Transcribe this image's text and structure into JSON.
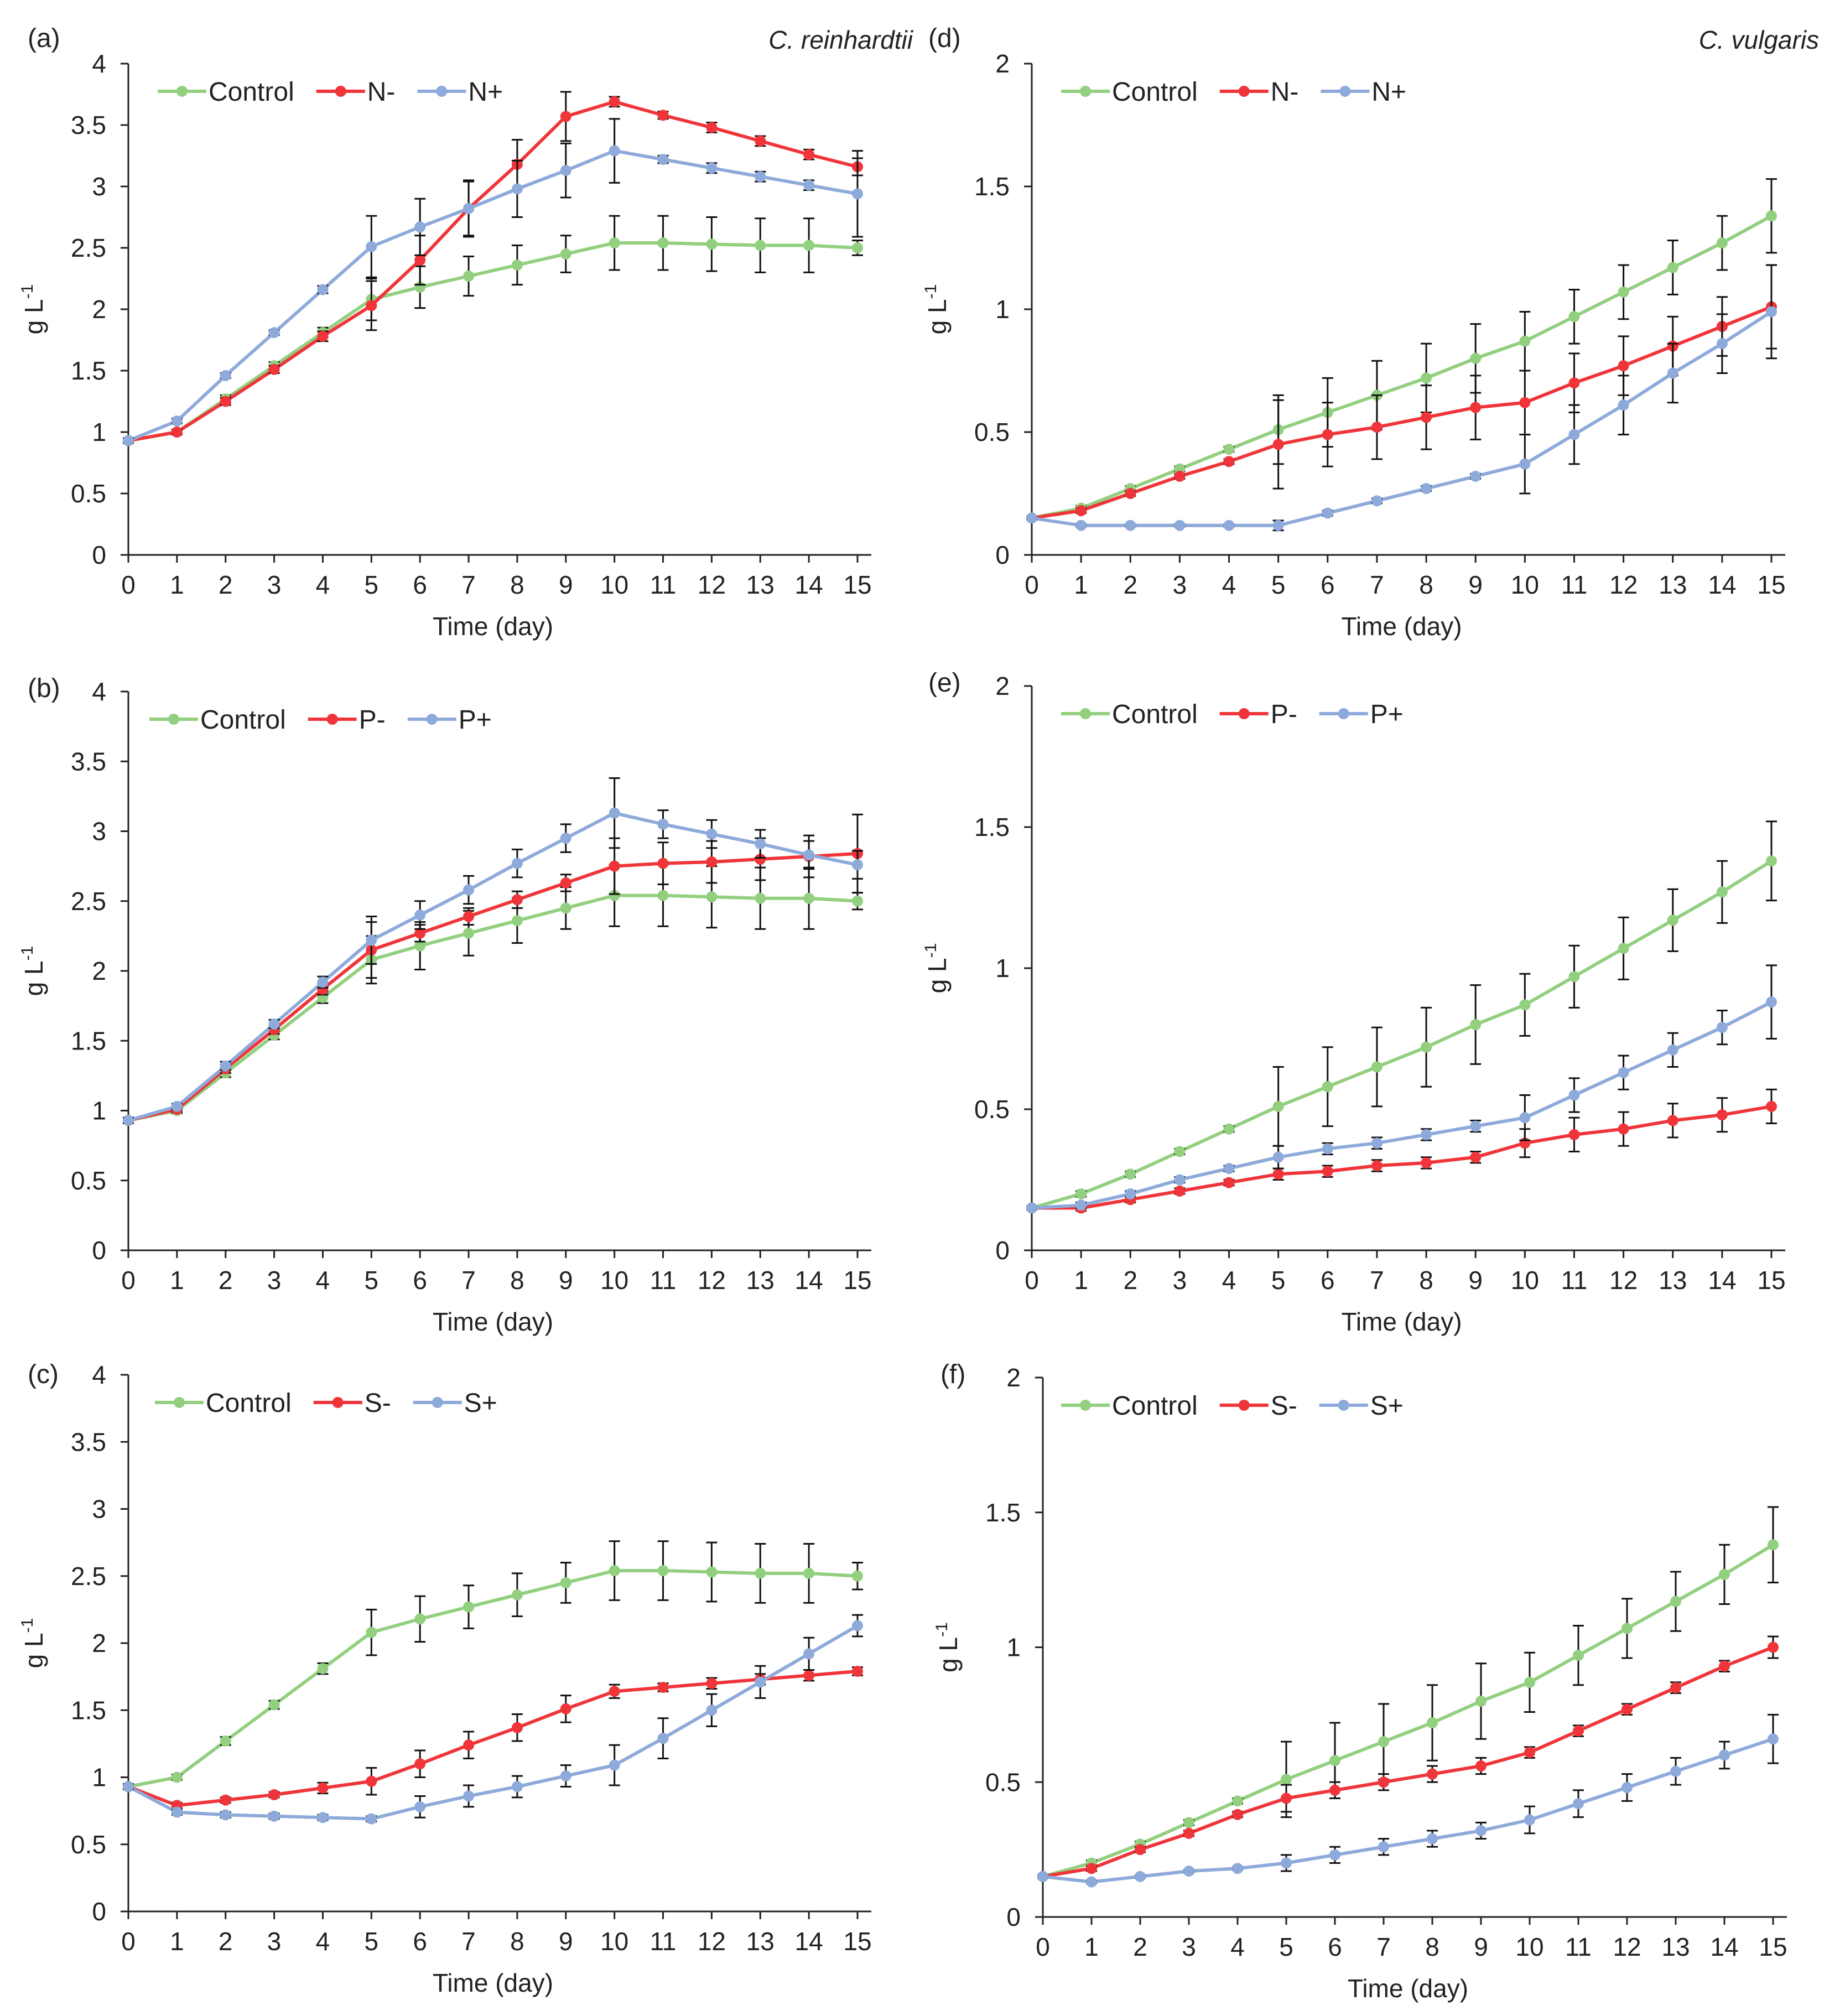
{
  "figure": {
    "species_left": "C. reinhardtii",
    "species_right": "C. vulgaris"
  },
  "colors": {
    "control": "#92cf7f",
    "minus": "#f0353a",
    "plus": "#8eaadb",
    "axis": "#222222",
    "errorbar": "#111111"
  },
  "chart_data": [
    {
      "panel": "(a)",
      "type": "line",
      "species": "C. reinhardtii",
      "xlabel": "Time (day)",
      "ylabel": "g L",
      "ylabel_sup": "-1",
      "x": [
        0,
        1,
        2,
        3,
        4,
        5,
        6,
        7,
        8,
        9,
        10,
        11,
        12,
        13,
        14,
        15
      ],
      "xlim": [
        0,
        15
      ],
      "ylim": [
        0,
        4
      ],
      "yticks": [
        0,
        0.5,
        1,
        1.5,
        2,
        2.5,
        3,
        3.5,
        4
      ],
      "ytick_labels": [
        "0",
        "0.5",
        "1",
        "1.5",
        "2",
        "2.5",
        "3",
        "3.5",
        "4"
      ],
      "series": [
        {
          "name": "Control",
          "color_key": "control",
          "values": [
            0.93,
            1.0,
            1.27,
            1.54,
            1.81,
            2.08,
            2.18,
            2.27,
            2.36,
            2.45,
            2.54,
            2.54,
            2.53,
            2.52,
            2.52,
            2.5
          ],
          "errors": [
            0.02,
            0.02,
            0.03,
            0.03,
            0.04,
            0.17,
            0.17,
            0.16,
            0.16,
            0.15,
            0.22,
            0.22,
            0.22,
            0.22,
            0.22,
            0.06
          ]
        },
        {
          "name": "N-",
          "color_key": "minus",
          "values": [
            0.93,
            1.0,
            1.25,
            1.51,
            1.78,
            2.03,
            2.4,
            2.82,
            3.18,
            3.57,
            3.69,
            3.58,
            3.48,
            3.37,
            3.26,
            3.16
          ],
          "errors": [
            0.02,
            0.02,
            0.03,
            0.03,
            0.04,
            0.2,
            0.2,
            0.22,
            0.2,
            0.2,
            0.04,
            0.03,
            0.04,
            0.04,
            0.04,
            0.07
          ]
        },
        {
          "name": "N+",
          "color_key": "plus",
          "values": [
            0.93,
            1.09,
            1.46,
            1.81,
            2.16,
            2.51,
            2.67,
            2.82,
            2.98,
            3.13,
            3.29,
            3.22,
            3.15,
            3.08,
            3.01,
            2.94
          ],
          "errors": [
            0.02,
            0.02,
            0.02,
            0.02,
            0.03,
            0.25,
            0.23,
            0.23,
            0.23,
            0.22,
            0.26,
            0.03,
            0.04,
            0.04,
            0.04,
            0.35
          ]
        }
      ]
    },
    {
      "panel": "(b)",
      "type": "line",
      "species": "C. reinhardtii",
      "xlabel": "Time (day)",
      "ylabel": "g L",
      "ylabel_sup": "-1",
      "x": [
        0,
        1,
        2,
        3,
        4,
        5,
        6,
        7,
        8,
        9,
        10,
        11,
        12,
        13,
        14,
        15
      ],
      "xlim": [
        0,
        15
      ],
      "ylim": [
        0,
        4
      ],
      "yticks": [
        0,
        0.5,
        1,
        1.5,
        2,
        2.5,
        3,
        3.5,
        4
      ],
      "ytick_labels": [
        "0",
        "0.5",
        "1",
        "1.5",
        "2",
        "2.5",
        "3",
        "3.5",
        "4"
      ],
      "series": [
        {
          "name": "Control",
          "color_key": "control",
          "values": [
            0.93,
            1.0,
            1.27,
            1.54,
            1.81,
            2.08,
            2.18,
            2.27,
            2.36,
            2.45,
            2.54,
            2.54,
            2.53,
            2.52,
            2.52,
            2.5
          ],
          "errors": [
            0.02,
            0.02,
            0.03,
            0.03,
            0.04,
            0.17,
            0.17,
            0.16,
            0.16,
            0.15,
            0.22,
            0.22,
            0.22,
            0.22,
            0.22,
            0.06
          ]
        },
        {
          "name": "P-",
          "color_key": "minus",
          "values": [
            0.93,
            1.01,
            1.3,
            1.58,
            1.87,
            2.15,
            2.27,
            2.39,
            2.51,
            2.63,
            2.75,
            2.77,
            2.78,
            2.8,
            2.82,
            2.84
          ],
          "errors": [
            0.02,
            0.02,
            0.03,
            0.03,
            0.04,
            0.2,
            0.06,
            0.06,
            0.06,
            0.06,
            0.2,
            0.15,
            0.15,
            0.15,
            0.15,
            0.28
          ]
        },
        {
          "name": "P+",
          "color_key": "plus",
          "values": [
            0.93,
            1.03,
            1.32,
            1.62,
            1.92,
            2.22,
            2.4,
            2.58,
            2.77,
            2.95,
            3.13,
            3.05,
            2.98,
            2.91,
            2.83,
            2.76
          ],
          "errors": [
            0.02,
            0.02,
            0.03,
            0.03,
            0.04,
            0.17,
            0.1,
            0.1,
            0.1,
            0.1,
            0.25,
            0.1,
            0.1,
            0.1,
            0.1,
            0.1
          ]
        }
      ]
    },
    {
      "panel": "(c)",
      "type": "line",
      "species": "C. reinhardtii",
      "xlabel": "Time (day)",
      "ylabel": "g L",
      "ylabel_sup": "-1",
      "x": [
        0,
        1,
        2,
        3,
        4,
        5,
        6,
        7,
        8,
        9,
        10,
        11,
        12,
        13,
        14,
        15
      ],
      "xlim": [
        0,
        15
      ],
      "ylim": [
        0,
        4
      ],
      "yticks": [
        0,
        0.5,
        1,
        1.5,
        2,
        2.5,
        3,
        3.5,
        4
      ],
      "ytick_labels": [
        "0",
        "0.5",
        "1",
        "1.5",
        "2",
        "2.5",
        "3",
        "3.5",
        "4"
      ],
      "series": [
        {
          "name": "Control",
          "color_key": "control",
          "values": [
            0.93,
            1.0,
            1.27,
            1.54,
            1.81,
            2.08,
            2.18,
            2.27,
            2.36,
            2.45,
            2.54,
            2.54,
            2.53,
            2.52,
            2.52,
            2.5
          ],
          "errors": [
            0.02,
            0.02,
            0.03,
            0.03,
            0.04,
            0.17,
            0.17,
            0.16,
            0.16,
            0.15,
            0.22,
            0.22,
            0.22,
            0.22,
            0.22,
            0.1
          ]
        },
        {
          "name": "S-",
          "color_key": "minus",
          "values": [
            0.93,
            0.79,
            0.83,
            0.87,
            0.92,
            0.97,
            1.1,
            1.24,
            1.37,
            1.51,
            1.64,
            1.67,
            1.7,
            1.73,
            1.76,
            1.79
          ],
          "errors": [
            0.02,
            0.02,
            0.02,
            0.02,
            0.04,
            0.1,
            0.1,
            0.1,
            0.1,
            0.1,
            0.05,
            0.03,
            0.04,
            0.04,
            0.04,
            0.03
          ]
        },
        {
          "name": "S+",
          "color_key": "plus",
          "values": [
            0.93,
            0.74,
            0.72,
            0.71,
            0.7,
            0.69,
            0.78,
            0.86,
            0.93,
            1.01,
            1.09,
            1.29,
            1.5,
            1.71,
            1.92,
            2.13
          ],
          "errors": [
            0.02,
            0.02,
            0.02,
            0.02,
            0.02,
            0.02,
            0.08,
            0.08,
            0.08,
            0.08,
            0.15,
            0.15,
            0.12,
            0.12,
            0.12,
            0.08
          ]
        }
      ]
    },
    {
      "panel": "(d)",
      "type": "line",
      "species": "C. vulgaris",
      "xlabel": "Time (day)",
      "ylabel": "g L",
      "ylabel_sup": "-1",
      "x": [
        0,
        1,
        2,
        3,
        4,
        5,
        6,
        7,
        8,
        9,
        10,
        11,
        12,
        13,
        14,
        15
      ],
      "xlim": [
        0,
        15
      ],
      "ylim": [
        0,
        2
      ],
      "yticks": [
        0,
        0.5,
        1,
        1.5,
        2
      ],
      "ytick_labels": [
        "0",
        "0.5",
        "1",
        "1.5",
        "2"
      ],
      "series": [
        {
          "name": "Control",
          "color_key": "control",
          "values": [
            0.15,
            0.19,
            0.27,
            0.35,
            0.43,
            0.51,
            0.58,
            0.65,
            0.72,
            0.8,
            0.87,
            0.97,
            1.07,
            1.17,
            1.27,
            1.38
          ],
          "errors": [
            0.005,
            0.01,
            0.01,
            0.01,
            0.01,
            0.14,
            0.14,
            0.14,
            0.14,
            0.14,
            0.12,
            0.11,
            0.11,
            0.11,
            0.11,
            0.15
          ]
        },
        {
          "name": "N-",
          "color_key": "minus",
          "values": [
            0.15,
            0.18,
            0.25,
            0.32,
            0.38,
            0.45,
            0.49,
            0.52,
            0.56,
            0.6,
            0.62,
            0.7,
            0.77,
            0.85,
            0.93,
            1.01
          ],
          "errors": [
            0.005,
            0.01,
            0.01,
            0.01,
            0.01,
            0.18,
            0.13,
            0.13,
            0.13,
            0.13,
            0.13,
            0.12,
            0.12,
            0.12,
            0.12,
            0.17
          ]
        },
        {
          "name": "N+",
          "color_key": "plus",
          "values": [
            0.15,
            0.12,
            0.12,
            0.12,
            0.12,
            0.12,
            0.17,
            0.22,
            0.27,
            0.32,
            0.37,
            0.49,
            0.61,
            0.74,
            0.86,
            0.99
          ],
          "errors": [
            0.005,
            0.005,
            0.005,
            0.005,
            0.005,
            0.02,
            0.01,
            0.01,
            0.01,
            0.01,
            0.12,
            0.12,
            0.12,
            0.12,
            0.12,
            0.19
          ]
        }
      ]
    },
    {
      "panel": "(e)",
      "type": "line",
      "species": "C. vulgaris",
      "xlabel": "Time (day)",
      "ylabel": "g L",
      "ylabel_sup": "-1",
      "x": [
        0,
        1,
        2,
        3,
        4,
        5,
        6,
        7,
        8,
        9,
        10,
        11,
        12,
        13,
        14,
        15
      ],
      "xlim": [
        0,
        15
      ],
      "ylim": [
        0,
        2
      ],
      "yticks": [
        0,
        0.5,
        1,
        1.5,
        2
      ],
      "ytick_labels": [
        "0",
        "0.5",
        "1",
        "1.5",
        "2"
      ],
      "series": [
        {
          "name": "Control",
          "color_key": "control",
          "values": [
            0.15,
            0.2,
            0.27,
            0.35,
            0.43,
            0.51,
            0.58,
            0.65,
            0.72,
            0.8,
            0.87,
            0.97,
            1.07,
            1.17,
            1.27,
            1.38
          ],
          "errors": [
            0.005,
            0.01,
            0.01,
            0.01,
            0.01,
            0.14,
            0.14,
            0.14,
            0.14,
            0.14,
            0.11,
            0.11,
            0.11,
            0.11,
            0.11,
            0.14
          ]
        },
        {
          "name": "P-",
          "color_key": "minus",
          "values": [
            0.15,
            0.15,
            0.18,
            0.21,
            0.24,
            0.27,
            0.28,
            0.3,
            0.31,
            0.33,
            0.38,
            0.41,
            0.43,
            0.46,
            0.48,
            0.51
          ],
          "errors": [
            0.005,
            0.01,
            0.01,
            0.01,
            0.01,
            0.02,
            0.02,
            0.02,
            0.02,
            0.02,
            0.05,
            0.06,
            0.06,
            0.06,
            0.06,
            0.06
          ]
        },
        {
          "name": "P+",
          "color_key": "plus",
          "values": [
            0.15,
            0.16,
            0.2,
            0.25,
            0.29,
            0.33,
            0.36,
            0.38,
            0.41,
            0.44,
            0.47,
            0.55,
            0.63,
            0.71,
            0.79,
            0.88
          ],
          "errors": [
            0.005,
            0.01,
            0.01,
            0.01,
            0.01,
            0.04,
            0.02,
            0.02,
            0.02,
            0.02,
            0.08,
            0.06,
            0.06,
            0.06,
            0.06,
            0.13
          ]
        }
      ]
    },
    {
      "panel": "(f)",
      "type": "line",
      "species": "C. vulgaris",
      "xlabel": "Time (day)",
      "ylabel": "g L",
      "ylabel_sup": "-1",
      "x": [
        0,
        1,
        2,
        3,
        4,
        5,
        6,
        7,
        8,
        9,
        10,
        11,
        12,
        13,
        14,
        15
      ],
      "xlim": [
        0,
        15
      ],
      "ylim": [
        0,
        2
      ],
      "yticks": [
        0,
        0.5,
        1,
        1.5,
        2
      ],
      "ytick_labels": [
        "0",
        "0.5",
        "1",
        "1.5",
        "2"
      ],
      "series": [
        {
          "name": "Control",
          "color_key": "control",
          "values": [
            0.15,
            0.2,
            0.27,
            0.35,
            0.43,
            0.51,
            0.58,
            0.65,
            0.72,
            0.8,
            0.87,
            0.97,
            1.07,
            1.17,
            1.27,
            1.38
          ],
          "errors": [
            0.005,
            0.01,
            0.01,
            0.01,
            0.01,
            0.14,
            0.14,
            0.14,
            0.14,
            0.14,
            0.11,
            0.11,
            0.11,
            0.11,
            0.11,
            0.14
          ]
        },
        {
          "name": "S-",
          "color_key": "minus",
          "values": [
            0.15,
            0.18,
            0.25,
            0.31,
            0.38,
            0.44,
            0.47,
            0.5,
            0.53,
            0.56,
            0.61,
            0.69,
            0.77,
            0.85,
            0.93,
            1.0
          ],
          "errors": [
            0.005,
            0.01,
            0.01,
            0.01,
            0.01,
            0.05,
            0.03,
            0.03,
            0.03,
            0.03,
            0.02,
            0.02,
            0.02,
            0.02,
            0.02,
            0.04
          ]
        },
        {
          "name": "S+",
          "color_key": "plus",
          "values": [
            0.15,
            0.13,
            0.15,
            0.17,
            0.18,
            0.2,
            0.23,
            0.26,
            0.29,
            0.32,
            0.36,
            0.42,
            0.48,
            0.54,
            0.6,
            0.66
          ],
          "errors": [
            0.005,
            0.005,
            0.005,
            0.005,
            0.005,
            0.03,
            0.03,
            0.03,
            0.03,
            0.03,
            0.05,
            0.05,
            0.05,
            0.05,
            0.05,
            0.09
          ]
        }
      ]
    }
  ]
}
